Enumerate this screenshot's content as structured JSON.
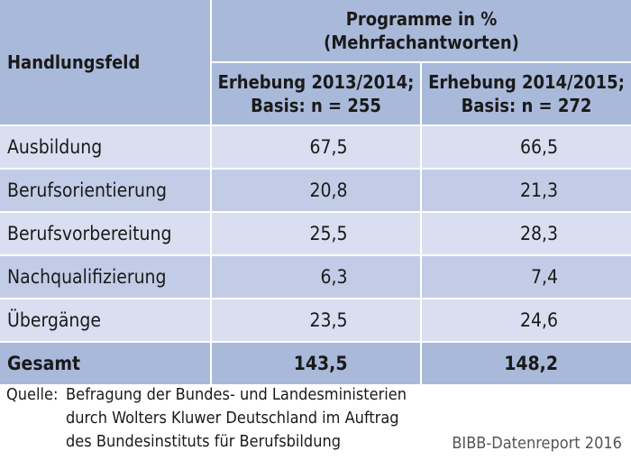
{
  "header": {
    "row_label": "Handlungsfeld",
    "group_line1": "Programme in %",
    "group_line2": "(Mehrfachantworten)",
    "col1_line1": "Erhebung 2013/2014;",
    "col1_line2": "Basis: n = 255",
    "col2_line1": "Erhebung 2014/2015;",
    "col2_line2": "Basis: n = 272"
  },
  "rows": [
    {
      "label": "Ausbildung",
      "v1": "67,5",
      "v2": "66,5"
    },
    {
      "label": "Berufsorientierung",
      "v1": "20,8",
      "v2": "21,3"
    },
    {
      "label": "Berufsvorbereitung",
      "v1": "25,5",
      "v2": "28,3"
    },
    {
      "label": "Nachqualifizierung",
      "v1": "6,3",
      "v2": "7,4"
    },
    {
      "label": "Übergänge",
      "v1": "23,5",
      "v2": "24,6"
    }
  ],
  "total": {
    "label": "Gesamt",
    "v1": "143,5",
    "v2": "148,2"
  },
  "footer": {
    "source_label": "Quelle:",
    "source_lines": [
      "Befragung der Bundes- und Landesministerien",
      "durch Wolters Kluwer Deutschland im Auftrag",
      "des Bundesinstituts für Berufsbildung"
    ],
    "report": "BIBB-Datenreport 2016"
  }
}
